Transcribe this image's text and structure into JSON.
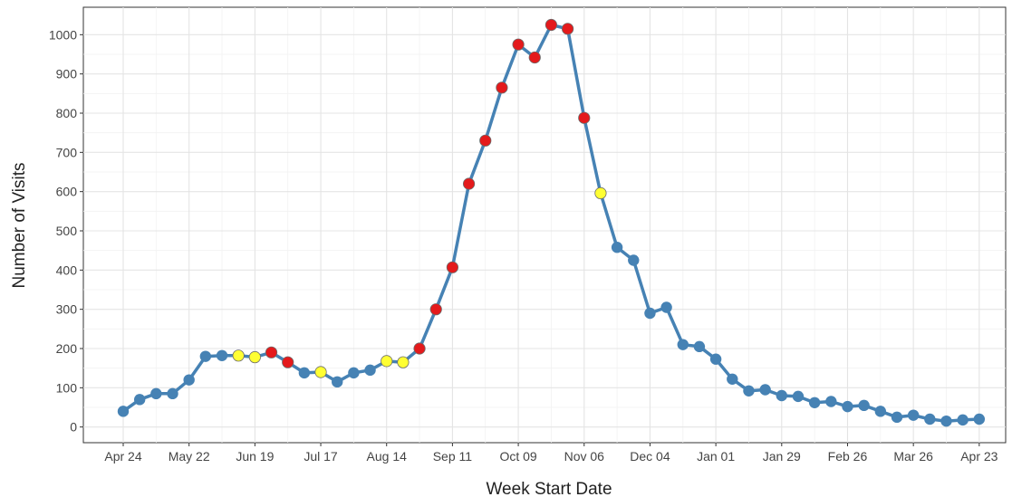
{
  "chart_data": {
    "type": "line",
    "title": "",
    "xlabel": "Week Start Date",
    "ylabel": "Number of Visits",
    "ylim": [
      -40,
      1070
    ],
    "yticks": [
      0,
      100,
      200,
      300,
      400,
      500,
      600,
      700,
      800,
      900,
      1000
    ],
    "xticks": [
      {
        "index": 0,
        "label": "Apr 24"
      },
      {
        "index": 4,
        "label": "May 22"
      },
      {
        "index": 8,
        "label": "Jun 19"
      },
      {
        "index": 12,
        "label": "Jul 17"
      },
      {
        "index": 16,
        "label": "Aug 14"
      },
      {
        "index": 20,
        "label": "Sep 11"
      },
      {
        "index": 24,
        "label": "Oct 09"
      },
      {
        "index": 28,
        "label": "Nov 06"
      },
      {
        "index": 32,
        "label": "Dec 04"
      },
      {
        "index": 36,
        "label": "Jan 01"
      },
      {
        "index": 40,
        "label": "Jan 29"
      },
      {
        "index": 44,
        "label": "Feb 26"
      },
      {
        "index": 48,
        "label": "Mar 26"
      },
      {
        "index": 52,
        "label": "Apr 23"
      }
    ],
    "grid": true,
    "line_color": "#4682b4",
    "status_colors": {
      "normal": "#4682b4",
      "high": "#ffff33",
      "very_high": "#e41a1c"
    },
    "series": [
      {
        "values": [
          40,
          70,
          85,
          85,
          120,
          180,
          182,
          182,
          178,
          190,
          165,
          138,
          140,
          115,
          138,
          145,
          168,
          165,
          200,
          300,
          407,
          620,
          730,
          865,
          975,
          942,
          1025,
          1015,
          788,
          596,
          458,
          425,
          290,
          305,
          210,
          205,
          173,
          122,
          92,
          95,
          80,
          78,
          62,
          65,
          52,
          55,
          40,
          25,
          30,
          20,
          15,
          18,
          20
        ],
        "status": [
          "normal",
          "normal",
          "normal",
          "normal",
          "normal",
          "normal",
          "normal",
          "high",
          "high",
          "very_high",
          "very_high",
          "normal",
          "high",
          "normal",
          "normal",
          "normal",
          "high",
          "high",
          "very_high",
          "very_high",
          "very_high",
          "very_high",
          "very_high",
          "very_high",
          "very_high",
          "very_high",
          "very_high",
          "very_high",
          "very_high",
          "high",
          "normal",
          "normal",
          "normal",
          "normal",
          "normal",
          "normal",
          "normal",
          "normal",
          "normal",
          "normal",
          "normal",
          "normal",
          "normal",
          "normal",
          "normal",
          "normal",
          "normal",
          "normal",
          "normal",
          "normal",
          "normal",
          "normal",
          "normal"
        ]
      }
    ]
  }
}
